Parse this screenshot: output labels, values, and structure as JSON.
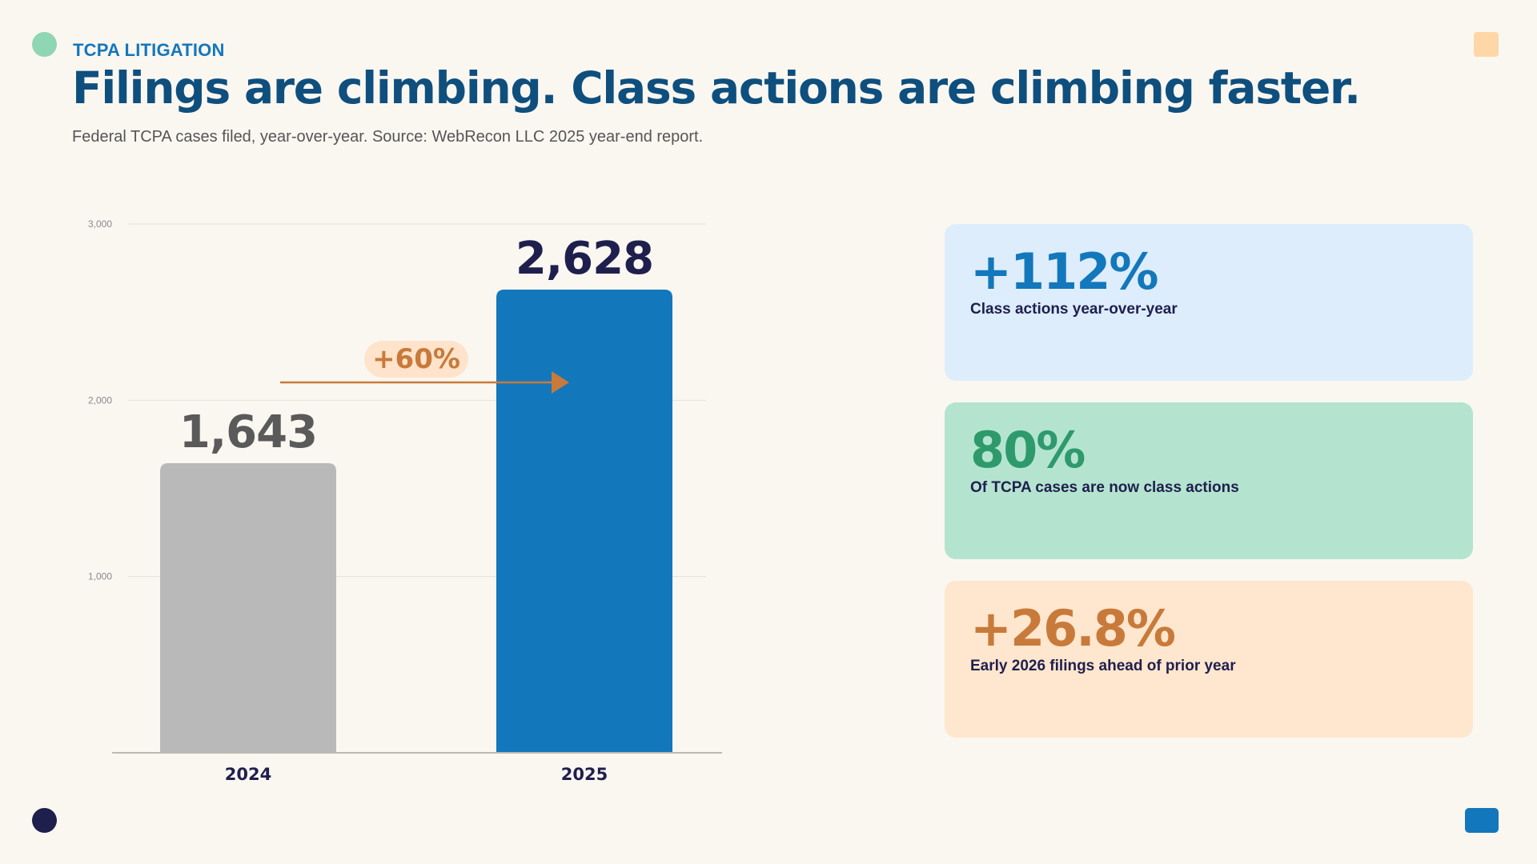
{
  "header": {
    "kicker": "TCPA LITIGATION",
    "title": "Filings are climbing. Class actions are climbing faster.",
    "subtitle": "Federal TCPA cases filed, year-over-year. Source: WebRecon LLC 2025 year-end report."
  },
  "chart_data": {
    "type": "bar",
    "categories": [
      "2024",
      "2025"
    ],
    "values": [
      1643,
      2628
    ],
    "value_labels": [
      "1,643",
      "2,628"
    ],
    "ylim": [
      0,
      3000
    ],
    "yticks": [
      1000,
      2000,
      3000
    ],
    "ytick_labels": [
      "1,000",
      "2,000",
      "3,000"
    ],
    "grid": true,
    "colors": [
      "#B9B9B9",
      "#1377BC"
    ],
    "value_label_colors": [
      "#5A5A5A",
      "#1F1F4E"
    ],
    "annotation": {
      "text": "+60%",
      "color": "#C87A3A",
      "background": "#FFE3CB"
    }
  },
  "stats": [
    {
      "value": "+112%",
      "label": "Class actions year-over-year",
      "color": "#1377BC",
      "background": "#DDEDFC"
    },
    {
      "value": "80%",
      "label": "Of TCPA cases are now class actions",
      "color": "#2E9A6C",
      "background": "#B4E4CF"
    },
    {
      "value": "+26.8%",
      "label": "Early 2026 filings ahead of prior year",
      "color": "#C87A3A",
      "background": "#FFE6CE"
    }
  ]
}
